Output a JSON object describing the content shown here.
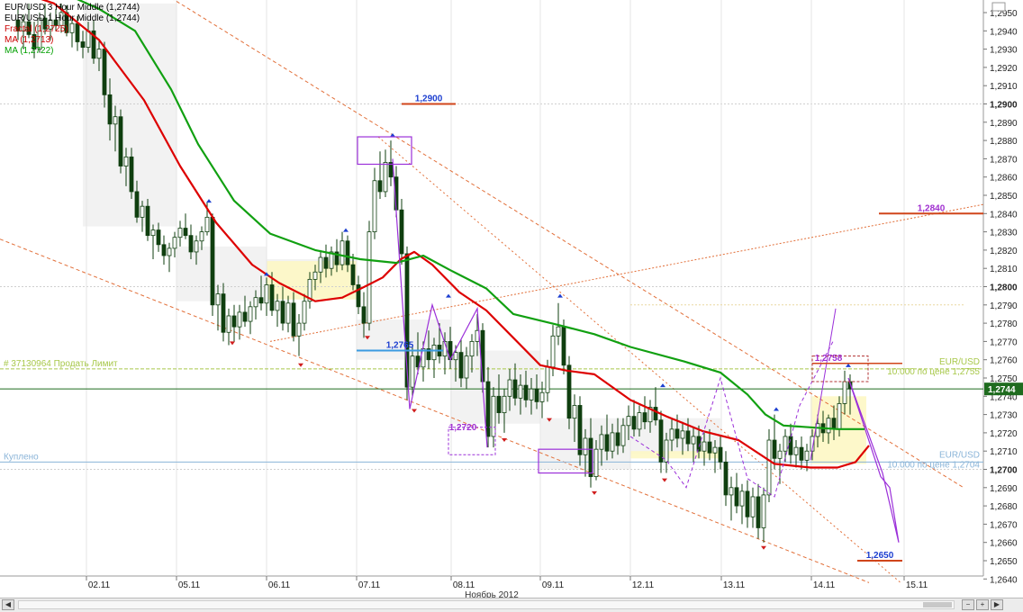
{
  "chart_data": {
    "type": "candlestick",
    "instrument": "EURUSD",
    "legend": [
      {
        "text": "EUR/USD 3 Hour Middle (1,2744)",
        "color": "#000000"
      },
      {
        "text": "EUR/USD 1 Hour Middle (1,2744)",
        "color": "#000000"
      },
      {
        "text": "Fractal (1,2725)",
        "color": "#cc0000"
      },
      {
        "text": "MA (1,2713)",
        "color": "#cc0000"
      },
      {
        "text": "MA (1,2722)",
        "color": "#00a000"
      }
    ],
    "x_axis": {
      "ticks": [
        "02.11",
        "05.11",
        "06.11",
        "07.11",
        "08.11",
        "09.11",
        "12.11",
        "13.11",
        "14.11",
        "15.11"
      ],
      "month_label": "Ноябрь 2012"
    },
    "y_axis": {
      "min": 1.2633,
      "max": 1.2955,
      "ticks": [
        "1,2640",
        "1,2650",
        "1,2660",
        "1,2670",
        "1,2680",
        "1,2690",
        "1,2700",
        "1,2710",
        "1,2720",
        "1,2730",
        "1,2740",
        "1,2750",
        "1,2760",
        "1,2770",
        "1,2780",
        "1,2790",
        "1,2800",
        "1,2810",
        "1,2820",
        "1,2830",
        "1,2840",
        "1,2850",
        "1,2860",
        "1,2870",
        "1,2880",
        "1,2890",
        "1,2900",
        "1,2910",
        "1,2920",
        "1,2930",
        "1,2940",
        "1,2950"
      ],
      "bold_ticks": [
        "1,2700",
        "1,2800",
        "1,2900"
      ],
      "current_price": "1,2744"
    },
    "levels": [
      {
        "label": "1,2900",
        "price": 1.29
      },
      {
        "label": "1,2840",
        "price": 1.284
      },
      {
        "label": "1,2765",
        "price": 1.2765
      },
      {
        "label": "1,2758",
        "price": 1.2758
      },
      {
        "label": "1,2720",
        "price": 1.272
      },
      {
        "label": "1,2650",
        "price": 1.265
      }
    ],
    "orders": [
      {
        "left_text": "# 37130964 Продать Лимит",
        "right_title": "EUR/USD",
        "right_detail": "10.000 по цене 1,2755",
        "price": 1.2755,
        "color": "#a8c84a"
      },
      {
        "left_text": "Куплено",
        "right_title": "EUR/USD",
        "right_detail": "10.000 по цене 1,2704",
        "price": 1.2704,
        "color": "#8ab4d8"
      }
    ],
    "series": [
      {
        "name": "MA (1,2713)",
        "color": "#dd0000",
        "x": [
          0,
          60,
          110,
          160,
          200,
          240,
          280,
          310,
          350,
          380,
          405,
          425,
          445,
          460,
          480,
          510,
          540,
          570,
          600,
          630,
          660,
          700,
          740,
          780,
          820,
          860,
          900,
          930,
          950,
          965
        ],
        "y": [
          1.2965,
          1.2955,
          1.2935,
          1.2902,
          1.2866,
          1.2835,
          1.2812,
          1.2802,
          1.2792,
          1.2794,
          1.28,
          1.2805,
          1.2815,
          1.2819,
          1.2812,
          1.2797,
          1.2787,
          1.2772,
          1.2757,
          1.2754,
          1.2752,
          1.2738,
          1.2729,
          1.2721,
          1.2716,
          1.2703,
          1.2701,
          1.2701,
          1.2704,
          1.2713
        ]
      },
      {
        "name": "MA (1,2722)",
        "color": "#11a011",
        "x": [
          0,
          60,
          110,
          150,
          190,
          220,
          260,
          300,
          350,
          400,
          440,
          470,
          500,
          540,
          570,
          620,
          660,
          700,
          760,
          800,
          830,
          850,
          870,
          900,
          930,
          960
        ],
        "y": [
          1.297,
          1.2963,
          1.2952,
          1.294,
          1.2908,
          1.2878,
          1.2847,
          1.2829,
          1.282,
          1.2815,
          1.2813,
          1.2817,
          1.2809,
          1.2799,
          1.2785,
          1.2779,
          1.2774,
          1.2767,
          1.2759,
          1.2753,
          1.2741,
          1.273,
          1.2724,
          1.2723,
          1.2722,
          1.2722
        ]
      }
    ],
    "candles": [
      [
        20,
        1.2946,
        1.2952,
        1.2935,
        1.294
      ],
      [
        26,
        1.294,
        1.2949,
        1.293,
        1.2945
      ],
      [
        32,
        1.2945,
        1.2955,
        1.2936,
        1.2938
      ],
      [
        38,
        1.2938,
        1.2945,
        1.2925,
        1.293
      ],
      [
        44,
        1.293,
        1.295,
        1.2928,
        1.2947
      ],
      [
        50,
        1.2947,
        1.2955,
        1.2938,
        1.2941
      ],
      [
        56,
        1.2941,
        1.295,
        1.2935,
        1.2946
      ],
      [
        62,
        1.2946,
        1.2952,
        1.294,
        1.2943
      ],
      [
        68,
        1.2943,
        1.2955,
        1.2939,
        1.295
      ],
      [
        74,
        1.295,
        1.2954,
        1.2937,
        1.2939
      ],
      [
        80,
        1.2939,
        1.2947,
        1.2931,
        1.2944
      ],
      [
        86,
        1.2944,
        1.2948,
        1.2929,
        1.2934
      ],
      [
        92,
        1.2934,
        1.294,
        1.2925,
        1.2931
      ],
      [
        98,
        1.2931,
        1.2945,
        1.2928,
        1.294
      ],
      [
        104,
        1.294,
        1.2946,
        1.2922,
        1.2925
      ],
      [
        110,
        1.2925,
        1.2935,
        1.2918,
        1.293
      ],
      [
        116,
        1.293,
        1.2934,
        1.2898,
        1.2905
      ],
      [
        122,
        1.2905,
        1.2914,
        1.288,
        1.2889
      ],
      [
        128,
        1.2889,
        1.2899,
        1.2874,
        1.2893
      ],
      [
        134,
        1.2893,
        1.2897,
        1.2862,
        1.2866
      ],
      [
        140,
        1.2866,
        1.2876,
        1.2855,
        1.2871
      ],
      [
        146,
        1.2871,
        1.2876,
        1.2848,
        1.2852
      ],
      [
        152,
        1.2852,
        1.2858,
        1.2835,
        1.2838
      ],
      [
        158,
        1.2838,
        1.2847,
        1.283,
        1.2844
      ],
      [
        164,
        1.2844,
        1.2848,
        1.2825,
        1.2828
      ],
      [
        170,
        1.2828,
        1.2834,
        1.2815,
        1.2831
      ],
      [
        176,
        1.2831,
        1.2835,
        1.2819,
        1.2823
      ],
      [
        182,
        1.2823,
        1.2828,
        1.2812,
        1.2817
      ],
      [
        188,
        1.2817,
        1.2824,
        1.2808,
        1.2821
      ],
      [
        194,
        1.2821,
        1.283,
        1.2816,
        1.2827
      ],
      [
        200,
        1.2827,
        1.2836,
        1.2822,
        1.2832
      ],
      [
        206,
        1.2832,
        1.284,
        1.2826,
        1.2828
      ],
      [
        212,
        1.2828,
        1.2834,
        1.2815,
        1.2819
      ],
      [
        218,
        1.2819,
        1.2828,
        1.2812,
        1.2825
      ],
      [
        224,
        1.2825,
        1.2833,
        1.282,
        1.283
      ],
      [
        230,
        1.283,
        1.2846,
        1.2828,
        1.2838
      ],
      [
        236,
        1.2838,
        1.284,
        1.2784,
        1.279
      ],
      [
        242,
        1.279,
        1.2801,
        1.2776,
        1.2796
      ],
      [
        248,
        1.2796,
        1.2802,
        1.277,
        1.2775
      ],
      [
        254,
        1.2775,
        1.2788,
        1.2768,
        1.2784
      ],
      [
        260,
        1.2784,
        1.279,
        1.277,
        1.2778
      ],
      [
        266,
        1.2778,
        1.279,
        1.2771,
        1.2786
      ],
      [
        272,
        1.2786,
        1.2795,
        1.2778,
        1.2781
      ],
      [
        278,
        1.2781,
        1.2792,
        1.2774,
        1.2789
      ],
      [
        284,
        1.2789,
        1.2798,
        1.2782,
        1.2794
      ],
      [
        290,
        1.2794,
        1.2806,
        1.2787,
        1.2791
      ],
      [
        296,
        1.2791,
        1.2805,
        1.2784,
        1.2801
      ],
      [
        302,
        1.2801,
        1.2808,
        1.2784,
        1.2787
      ],
      [
        308,
        1.2787,
        1.2796,
        1.2778,
        1.2792
      ],
      [
        314,
        1.2792,
        1.28,
        1.2776,
        1.278
      ],
      [
        320,
        1.278,
        1.2795,
        1.2775,
        1.2791
      ],
      [
        326,
        1.2791,
        1.2797,
        1.277,
        1.2773
      ],
      [
        332,
        1.2773,
        1.2785,
        1.2762,
        1.278
      ],
      [
        338,
        1.278,
        1.2796,
        1.2776,
        1.2792
      ],
      [
        344,
        1.2792,
        1.2808,
        1.2788,
        1.2804
      ],
      [
        350,
        1.2804,
        1.2812,
        1.2798,
        1.2808
      ],
      [
        356,
        1.2808,
        1.282,
        1.2802,
        1.2816
      ],
      [
        362,
        1.2816,
        1.2823,
        1.2805,
        1.281
      ],
      [
        368,
        1.281,
        1.2822,
        1.2806,
        1.2819
      ],
      [
        374,
        1.2819,
        1.2826,
        1.2808,
        1.2812
      ],
      [
        380,
        1.2812,
        1.283,
        1.2809,
        1.2825
      ],
      [
        386,
        1.2825,
        1.2828,
        1.2808,
        1.2812
      ],
      [
        392,
        1.2812,
        1.2818,
        1.2798,
        1.2801
      ],
      [
        398,
        1.2801,
        1.2806,
        1.2785,
        1.2789
      ],
      [
        404,
        1.2789,
        1.2797,
        1.2772,
        1.278
      ],
      [
        410,
        1.278,
        1.2836,
        1.2776,
        1.283
      ],
      [
        416,
        1.283,
        1.2865,
        1.2826,
        1.2858
      ],
      [
        422,
        1.2858,
        1.2874,
        1.2848,
        1.2852
      ],
      [
        428,
        1.2852,
        1.2875,
        1.2849,
        1.2868
      ],
      [
        434,
        1.2868,
        1.288,
        1.2855,
        1.286
      ],
      [
        440,
        1.286,
        1.2866,
        1.2838,
        1.2842
      ],
      [
        446,
        1.2842,
        1.2848,
        1.2812,
        1.2818
      ],
      [
        452,
        1.2818,
        1.2822,
        1.2738,
        1.2745
      ],
      [
        458,
        1.2745,
        1.2768,
        1.274,
        1.2762
      ],
      [
        464,
        1.2762,
        1.2775,
        1.2752,
        1.2756
      ],
      [
        470,
        1.2756,
        1.277,
        1.2748,
        1.2766
      ],
      [
        476,
        1.2766,
        1.2776,
        1.2755,
        1.276
      ],
      [
        482,
        1.276,
        1.2772,
        1.275,
        1.2768
      ],
      [
        488,
        1.2768,
        1.278,
        1.2758,
        1.2762
      ],
      [
        494,
        1.2762,
        1.2775,
        1.2752,
        1.277
      ],
      [
        500,
        1.277,
        1.2778,
        1.2755,
        1.276
      ],
      [
        506,
        1.276,
        1.2768,
        1.2748,
        1.2764
      ],
      [
        512,
        1.2764,
        1.2771,
        1.2745,
        1.275
      ],
      [
        518,
        1.275,
        1.2767,
        1.2744,
        1.2762
      ],
      [
        524,
        1.2762,
        1.2774,
        1.2753,
        1.277
      ],
      [
        530,
        1.277,
        1.2785,
        1.2762,
        1.2776
      ],
      [
        536,
        1.2776,
        1.278,
        1.2742,
        1.2748
      ],
      [
        542,
        1.2748,
        1.2756,
        1.2712,
        1.2718
      ],
      [
        548,
        1.2718,
        1.2745,
        1.2712,
        1.274
      ],
      [
        554,
        1.274,
        1.2752,
        1.2725,
        1.2731
      ],
      [
        560,
        1.2731,
        1.2744,
        1.272,
        1.274
      ],
      [
        566,
        1.274,
        1.2755,
        1.2732,
        1.2749
      ],
      [
        572,
        1.2749,
        1.2758,
        1.2735,
        1.2739
      ],
      [
        578,
        1.2739,
        1.2752,
        1.273,
        1.2746
      ],
      [
        584,
        1.2746,
        1.2754,
        1.2734,
        1.2738
      ],
      [
        590,
        1.2738,
        1.275,
        1.273,
        1.2744
      ],
      [
        596,
        1.2744,
        1.2752,
        1.2733,
        1.2737
      ],
      [
        602,
        1.2737,
        1.2748,
        1.2728,
        1.2742
      ],
      [
        608,
        1.2742,
        1.276,
        1.2737,
        1.2756
      ],
      [
        614,
        1.2756,
        1.2779,
        1.2751,
        1.2773
      ],
      [
        620,
        1.2773,
        1.2791,
        1.2768,
        1.2778
      ],
      [
        626,
        1.2778,
        1.2782,
        1.2752,
        1.2757
      ],
      [
        632,
        1.2757,
        1.2762,
        1.2722,
        1.2728
      ],
      [
        638,
        1.2728,
        1.2741,
        1.2715,
        1.2735
      ],
      [
        644,
        1.2735,
        1.274,
        1.2702,
        1.2708
      ],
      [
        650,
        1.2708,
        1.2722,
        1.2696,
        1.2717
      ],
      [
        656,
        1.2717,
        1.2728,
        1.269,
        1.2696
      ],
      [
        662,
        1.2696,
        1.2716,
        1.2694,
        1.2711
      ],
      [
        668,
        1.2711,
        1.2724,
        1.2702,
        1.2719
      ],
      [
        674,
        1.2719,
        1.273,
        1.2705,
        1.271
      ],
      [
        680,
        1.271,
        1.2725,
        1.2706,
        1.272
      ],
      [
        686,
        1.272,
        1.2728,
        1.2708,
        1.2713
      ],
      [
        692,
        1.2713,
        1.2728,
        1.2709,
        1.2724
      ],
      [
        698,
        1.2724,
        1.2735,
        1.2716,
        1.2729
      ],
      [
        704,
        1.2729,
        1.2738,
        1.2718,
        1.2722
      ],
      [
        710,
        1.2722,
        1.2735,
        1.2718,
        1.2731
      ],
      [
        716,
        1.2731,
        1.274,
        1.2722,
        1.2726
      ],
      [
        722,
        1.2726,
        1.2738,
        1.272,
        1.2734
      ],
      [
        728,
        1.2734,
        1.2745,
        1.2724,
        1.2727
      ],
      [
        734,
        1.2727,
        1.2732,
        1.2698,
        1.2704
      ],
      [
        740,
        1.2704,
        1.272,
        1.2698,
        1.2716
      ],
      [
        746,
        1.2716,
        1.2728,
        1.271,
        1.2722
      ],
      [
        752,
        1.2722,
        1.273,
        1.2712,
        1.2717
      ],
      [
        758,
        1.2717,
        1.2726,
        1.2708,
        1.2721
      ],
      [
        764,
        1.2721,
        1.2728,
        1.271,
        1.2714
      ],
      [
        770,
        1.2714,
        1.2723,
        1.2704,
        1.2718
      ],
      [
        776,
        1.2718,
        1.2724,
        1.2706,
        1.271
      ],
      [
        782,
        1.271,
        1.272,
        1.2702,
        1.2715
      ],
      [
        788,
        1.2715,
        1.2722,
        1.2705,
        1.2709
      ],
      [
        794,
        1.2709,
        1.2716,
        1.2698,
        1.2712
      ],
      [
        800,
        1.2712,
        1.2718,
        1.27,
        1.2704
      ],
      [
        806,
        1.2704,
        1.271,
        1.268,
        1.2686
      ],
      [
        812,
        1.2686,
        1.2696,
        1.2672,
        1.269
      ],
      [
        818,
        1.269,
        1.2698,
        1.2676,
        1.268
      ],
      [
        824,
        1.268,
        1.2692,
        1.267,
        1.2688
      ],
      [
        830,
        1.2688,
        1.2694,
        1.2668,
        1.2674
      ],
      [
        836,
        1.2674,
        1.269,
        1.2668,
        1.2685
      ],
      [
        842,
        1.2685,
        1.2692,
        1.2662,
        1.2668
      ],
      [
        848,
        1.2668,
        1.269,
        1.266,
        1.2686
      ],
      [
        854,
        1.2686,
        1.2722,
        1.2682,
        1.2716
      ],
      [
        860,
        1.2716,
        1.273,
        1.27,
        1.2706
      ],
      [
        866,
        1.2706,
        1.2714,
        1.2692,
        1.271
      ],
      [
        872,
        1.271,
        1.2722,
        1.2704,
        1.2718
      ],
      [
        878,
        1.2718,
        1.2725,
        1.2703,
        1.2708
      ],
      [
        884,
        1.2708,
        1.2716,
        1.2701,
        1.2712
      ],
      [
        890,
        1.2712,
        1.2718,
        1.27,
        1.2705
      ],
      [
        896,
        1.2705,
        1.2714,
        1.2699,
        1.271
      ],
      [
        902,
        1.271,
        1.2722,
        1.2705,
        1.2718
      ],
      [
        908,
        1.2718,
        1.273,
        1.2712,
        1.2725
      ],
      [
        914,
        1.2725,
        1.2732,
        1.2715,
        1.272
      ],
      [
        920,
        1.272,
        1.273,
        1.2714,
        1.2728
      ],
      [
        926,
        1.2728,
        1.2735,
        1.2716,
        1.2722
      ],
      [
        932,
        1.2722,
        1.274,
        1.2718,
        1.2736
      ],
      [
        938,
        1.2736,
        1.2754,
        1.273,
        1.2748
      ],
      [
        944,
        1.2748,
        1.2752,
        1.273,
        1.2744
      ]
    ]
  }
}
